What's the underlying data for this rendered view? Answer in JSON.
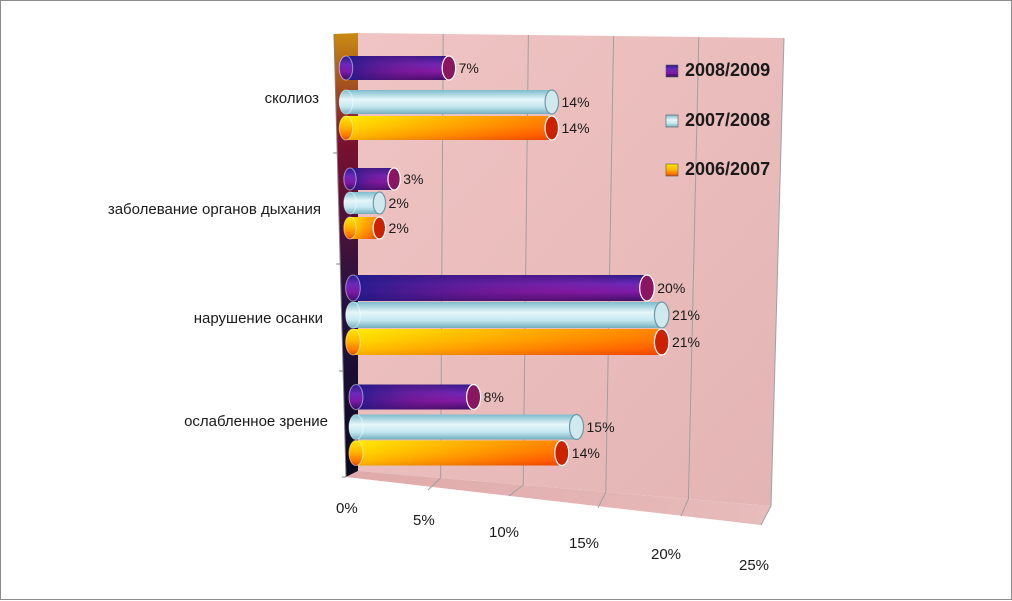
{
  "chart_data": {
    "type": "bar",
    "orientation": "horizontal",
    "style": "3d-cylinder",
    "categories": [
      "сколиоз",
      "заболевание органов дыхания",
      "нарушение осанки",
      "ослабленное зрение"
    ],
    "series": [
      {
        "name": "2008/2009",
        "values": [
          7,
          3,
          20,
          8
        ],
        "labels": [
          "7%",
          "3%",
          "20%",
          "8%"
        ],
        "color": "#7a1fa2"
      },
      {
        "name": "2007/2008",
        "values": [
          14,
          2,
          21,
          15
        ],
        "labels": [
          "14%",
          "2%",
          "21%",
          "15%"
        ],
        "color": "#bfe6f0"
      },
      {
        "name": "2006/2007",
        "values": [
          14,
          2,
          21,
          14
        ],
        "labels": [
          "14%",
          "2%",
          "21%",
          "14%"
        ],
        "color": "#ff9a00"
      }
    ],
    "xlim": [
      0,
      25
    ],
    "xticks": [
      "0%",
      "5%",
      "10%",
      "15%",
      "20%",
      "25%"
    ],
    "grid": true,
    "legend_position": "right",
    "back_wall_color": "#e9b9b9"
  }
}
